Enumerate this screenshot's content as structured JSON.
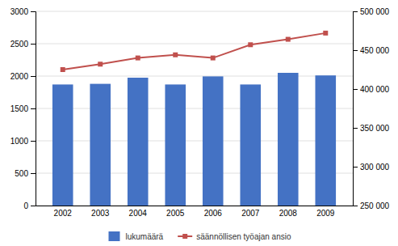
{
  "chart_data": {
    "type": "bar",
    "categories": [
      "2002",
      "2003",
      "2004",
      "2005",
      "2006",
      "2007",
      "2008",
      "2009"
    ],
    "series": [
      {
        "name": "lukumäärä",
        "type": "bar",
        "color": "#4472C4",
        "values": [
          1870,
          1880,
          1975,
          1870,
          1995,
          1870,
          2050,
          2010
        ]
      },
      {
        "name": "säännöllisen työajan ansio",
        "type": "line",
        "axis": "y2",
        "color": "#C0504D",
        "marker": "square",
        "values": [
          425000,
          432000,
          440000,
          444000,
          440000,
          457000,
          464000,
          472000
        ]
      }
    ],
    "ylim": [
      0,
      3000
    ],
    "yticks": [
      0,
      500,
      1000,
      1500,
      2000,
      2500,
      3000
    ],
    "y2lim": [
      250000,
      500000
    ],
    "y2ticks": [
      {
        "value": 250000,
        "label": "250 000"
      },
      {
        "value": 300000,
        "label": "300 000"
      },
      {
        "value": 350000,
        "label": "350 000"
      },
      {
        "value": 400000,
        "label": "400 000"
      },
      {
        "value": 450000,
        "label": "450 000"
      },
      {
        "value": 500000,
        "label": "500 000"
      }
    ],
    "grid": true,
    "legend": "bottom"
  }
}
